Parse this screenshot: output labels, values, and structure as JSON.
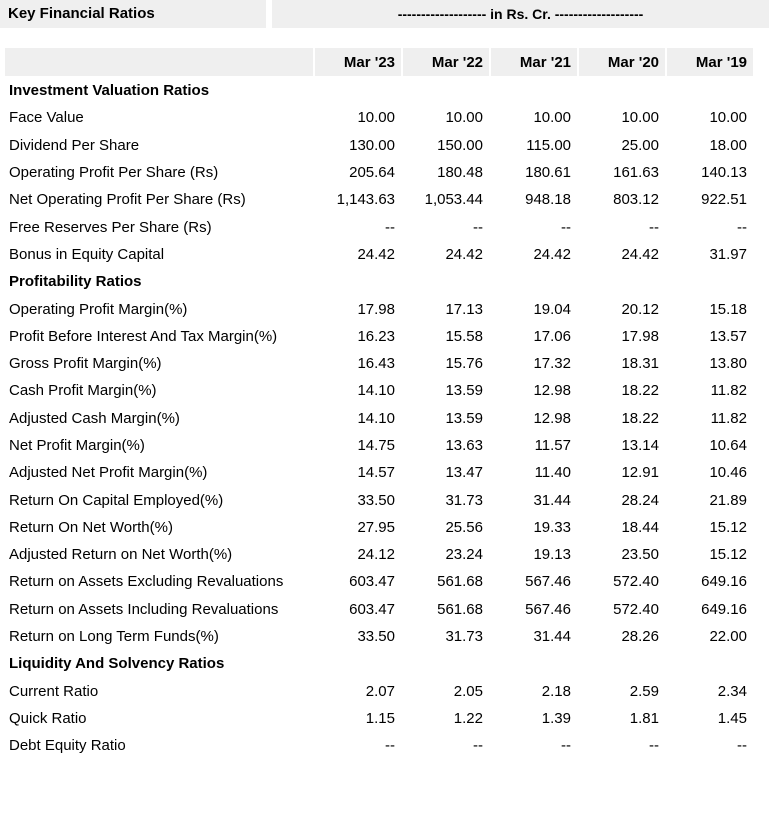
{
  "title": "Key Financial Ratios",
  "unit": "------------------- in Rs. Cr. -------------------",
  "columns": [
    "Mar '23",
    "Mar '22",
    "Mar '21",
    "Mar '20",
    "Mar '19"
  ],
  "sections": [
    {
      "name": "Investment Valuation Ratios",
      "rows": [
        {
          "label": "Face Value",
          "values": [
            "10.00",
            "10.00",
            "10.00",
            "10.00",
            "10.00"
          ]
        },
        {
          "label": "Dividend Per Share",
          "values": [
            "130.00",
            "150.00",
            "115.00",
            "25.00",
            "18.00"
          ]
        },
        {
          "label": "Operating Profit Per Share (Rs)",
          "values": [
            "205.64",
            "180.48",
            "180.61",
            "161.63",
            "140.13"
          ]
        },
        {
          "label": "Net Operating Profit Per Share (Rs)",
          "values": [
            "1,143.63",
            "1,053.44",
            "948.18",
            "803.12",
            "922.51"
          ]
        },
        {
          "label": "Free Reserves Per Share (Rs)",
          "values": [
            "--",
            "--",
            "--",
            "--",
            "--"
          ]
        },
        {
          "label": "Bonus in Equity Capital",
          "values": [
            "24.42",
            "24.42",
            "24.42",
            "24.42",
            "31.97"
          ]
        }
      ]
    },
    {
      "name": "Profitability Ratios",
      "rows": [
        {
          "label": "Operating Profit Margin(%)",
          "values": [
            "17.98",
            "17.13",
            "19.04",
            "20.12",
            "15.18"
          ]
        },
        {
          "label": "Profit Before Interest And Tax Margin(%)",
          "values": [
            "16.23",
            "15.58",
            "17.06",
            "17.98",
            "13.57"
          ]
        },
        {
          "label": "Gross Profit Margin(%)",
          "values": [
            "16.43",
            "15.76",
            "17.32",
            "18.31",
            "13.80"
          ]
        },
        {
          "label": "Cash Profit Margin(%)",
          "values": [
            "14.10",
            "13.59",
            "12.98",
            "18.22",
            "11.82"
          ]
        },
        {
          "label": "Adjusted Cash Margin(%)",
          "values": [
            "14.10",
            "13.59",
            "12.98",
            "18.22",
            "11.82"
          ]
        },
        {
          "label": "Net Profit Margin(%)",
          "values": [
            "14.75",
            "13.63",
            "11.57",
            "13.14",
            "10.64"
          ]
        },
        {
          "label": "Adjusted Net Profit Margin(%)",
          "values": [
            "14.57",
            "13.47",
            "11.40",
            "12.91",
            "10.46"
          ]
        },
        {
          "label": "Return On Capital Employed(%)",
          "values": [
            "33.50",
            "31.73",
            "31.44",
            "28.24",
            "21.89"
          ]
        },
        {
          "label": "Return On Net Worth(%)",
          "values": [
            "27.95",
            "25.56",
            "19.33",
            "18.44",
            "15.12"
          ]
        },
        {
          "label": "Adjusted Return on Net Worth(%)",
          "values": [
            "24.12",
            "23.24",
            "19.13",
            "23.50",
            "15.12"
          ]
        },
        {
          "label": "Return on Assets Excluding Revaluations",
          "values": [
            "603.47",
            "561.68",
            "567.46",
            "572.40",
            "649.16"
          ]
        },
        {
          "label": "Return on Assets Including Revaluations",
          "values": [
            "603.47",
            "561.68",
            "567.46",
            "572.40",
            "649.16"
          ]
        },
        {
          "label": "Return on Long Term Funds(%)",
          "values": [
            "33.50",
            "31.73",
            "31.44",
            "28.26",
            "22.00"
          ]
        }
      ]
    },
    {
      "name": "Liquidity And Solvency Ratios",
      "rows": [
        {
          "label": "Current Ratio",
          "values": [
            "2.07",
            "2.05",
            "2.18",
            "2.59",
            "2.34"
          ]
        },
        {
          "label": "Quick Ratio",
          "values": [
            "1.15",
            "1.22",
            "1.39",
            "1.81",
            "1.45"
          ]
        },
        {
          "label": "Debt Equity Ratio",
          "values": [
            "--",
            "--",
            "--",
            "--",
            "--"
          ]
        }
      ]
    }
  ]
}
